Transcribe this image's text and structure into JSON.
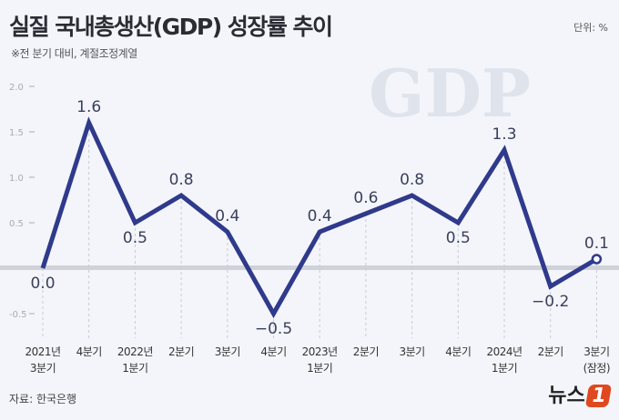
{
  "header": {
    "title": "실질 국내총생산(GDP) 성장률 추이",
    "subtitle": "※전 분기 대비, 계절조정계열",
    "unit": "단위: %"
  },
  "footer": {
    "source": "자료: 한국은행",
    "logo_text": "뉴스1",
    "watermark": "GDP"
  },
  "chart_data": {
    "type": "line",
    "title": "실질 국내총생산(GDP) 성장률 추이",
    "categories": [
      [
        "2021년",
        "3분기"
      ],
      [
        "4분기"
      ],
      [
        "2022년",
        "1분기"
      ],
      [
        "2분기"
      ],
      [
        "3분기"
      ],
      [
        "4분기"
      ],
      [
        "2023년",
        "1분기"
      ],
      [
        "2분기"
      ],
      [
        "3분기"
      ],
      [
        "4분기"
      ],
      [
        "2024년",
        "1분기"
      ],
      [
        "2분기"
      ],
      [
        "3분기",
        "(잠정)"
      ]
    ],
    "values": [
      0.0,
      1.6,
      0.5,
      0.8,
      0.4,
      -0.5,
      0.4,
      0.6,
      0.8,
      0.5,
      1.3,
      -0.2,
      0.1
    ],
    "value_labels": [
      "0.0",
      "1.6",
      "0.5",
      "0.8",
      "0.4",
      "−0.5",
      "0.4",
      "0.6",
      "0.8",
      "0.5",
      "1.3",
      "−0.2",
      "0.1"
    ],
    "yticks": [
      2.0,
      1.5,
      1.0,
      0.5,
      -0.5
    ],
    "ytick_labels": [
      "2.0",
      "1.5",
      "1.0",
      "0.5",
      "-0.5"
    ],
    "ylim": [
      -0.6,
      2.0
    ],
    "line_color": "#2f3a8c",
    "grid": "vertical dashed"
  }
}
